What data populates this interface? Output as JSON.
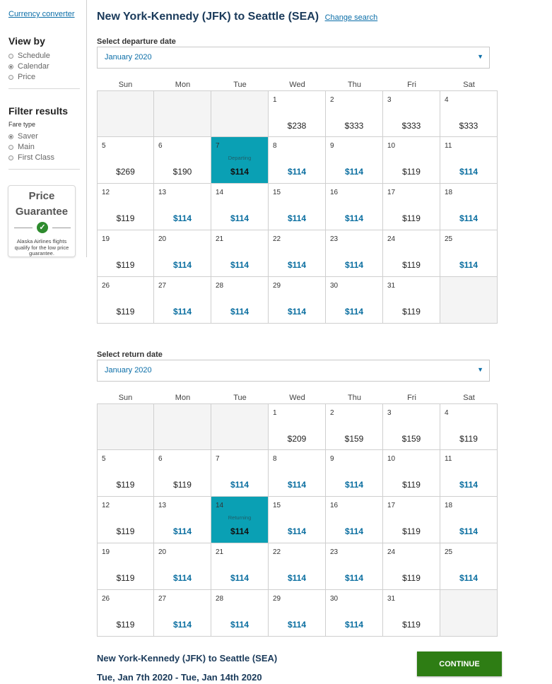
{
  "sidebar": {
    "currency_link": "Currency converter",
    "view_by": {
      "heading": "View by",
      "options": [
        {
          "label": "Schedule",
          "selected": false
        },
        {
          "label": "Calendar",
          "selected": true
        },
        {
          "label": "Price",
          "selected": false
        }
      ]
    },
    "filter": {
      "heading": "Filter results",
      "subheading": "Fare type",
      "options": [
        {
          "label": "Saver",
          "selected": true
        },
        {
          "label": "Main",
          "selected": false
        },
        {
          "label": "First Class",
          "selected": false
        }
      ]
    },
    "guarantee": {
      "title_line1": "Price",
      "title_line2": "Guarantee",
      "icon": "check-circle-icon",
      "text": "Alaska Airlines flights qualify for the low price guarantee."
    }
  },
  "header": {
    "title": "New York-Kennedy (JFK) to Seattle (SEA)",
    "change_link": "Change search"
  },
  "weekdays": [
    "Sun",
    "Mon",
    "Tue",
    "Wed",
    "Thu",
    "Fri",
    "Sat"
  ],
  "departure": {
    "label": "Select departure date",
    "month": "January 2020",
    "selected_tag": "Departing",
    "days": [
      {
        "day": "1",
        "price": "$238",
        "low": false
      },
      {
        "day": "2",
        "price": "$333",
        "low": false
      },
      {
        "day": "3",
        "price": "$333",
        "low": false
      },
      {
        "day": "4",
        "price": "$333",
        "low": false
      },
      {
        "day": "5",
        "price": "$269",
        "low": false
      },
      {
        "day": "6",
        "price": "$190",
        "low": false
      },
      {
        "day": "7",
        "price": "$114",
        "low": false,
        "selected": true
      },
      {
        "day": "8",
        "price": "$114",
        "low": true
      },
      {
        "day": "9",
        "price": "$114",
        "low": true
      },
      {
        "day": "10",
        "price": "$119",
        "low": false
      },
      {
        "day": "11",
        "price": "$114",
        "low": true
      },
      {
        "day": "12",
        "price": "$119",
        "low": false
      },
      {
        "day": "13",
        "price": "$114",
        "low": true
      },
      {
        "day": "14",
        "price": "$114",
        "low": true
      },
      {
        "day": "15",
        "price": "$114",
        "low": true
      },
      {
        "day": "16",
        "price": "$114",
        "low": true
      },
      {
        "day": "17",
        "price": "$119",
        "low": false
      },
      {
        "day": "18",
        "price": "$114",
        "low": true
      },
      {
        "day": "19",
        "price": "$119",
        "low": false
      },
      {
        "day": "20",
        "price": "$114",
        "low": true
      },
      {
        "day": "21",
        "price": "$114",
        "low": true
      },
      {
        "day": "22",
        "price": "$114",
        "low": true
      },
      {
        "day": "23",
        "price": "$114",
        "low": true
      },
      {
        "day": "24",
        "price": "$119",
        "low": false
      },
      {
        "day": "25",
        "price": "$114",
        "low": true
      },
      {
        "day": "26",
        "price": "$119",
        "low": false
      },
      {
        "day": "27",
        "price": "$114",
        "low": true
      },
      {
        "day": "28",
        "price": "$114",
        "low": true
      },
      {
        "day": "29",
        "price": "$114",
        "low": true
      },
      {
        "day": "30",
        "price": "$114",
        "low": true
      },
      {
        "day": "31",
        "price": "$119",
        "low": false
      }
    ]
  },
  "return": {
    "label": "Select return date",
    "month": "January 2020",
    "selected_tag": "Returning",
    "days": [
      {
        "day": "1",
        "price": "$209",
        "low": false
      },
      {
        "day": "2",
        "price": "$159",
        "low": false
      },
      {
        "day": "3",
        "price": "$159",
        "low": false
      },
      {
        "day": "4",
        "price": "$119",
        "low": false
      },
      {
        "day": "5",
        "price": "$119",
        "low": false
      },
      {
        "day": "6",
        "price": "$119",
        "low": false
      },
      {
        "day": "7",
        "price": "$114",
        "low": true
      },
      {
        "day": "8",
        "price": "$114",
        "low": true
      },
      {
        "day": "9",
        "price": "$114",
        "low": true
      },
      {
        "day": "10",
        "price": "$119",
        "low": false
      },
      {
        "day": "11",
        "price": "$114",
        "low": true
      },
      {
        "day": "12",
        "price": "$119",
        "low": false
      },
      {
        "day": "13",
        "price": "$114",
        "low": true
      },
      {
        "day": "14",
        "price": "$114",
        "low": false,
        "selected": true
      },
      {
        "day": "15",
        "price": "$114",
        "low": true
      },
      {
        "day": "16",
        "price": "$114",
        "low": true
      },
      {
        "day": "17",
        "price": "$119",
        "low": false
      },
      {
        "day": "18",
        "price": "$114",
        "low": true
      },
      {
        "day": "19",
        "price": "$119",
        "low": false
      },
      {
        "day": "20",
        "price": "$114",
        "low": true
      },
      {
        "day": "21",
        "price": "$114",
        "low": true
      },
      {
        "day": "22",
        "price": "$114",
        "low": true
      },
      {
        "day": "23",
        "price": "$114",
        "low": true
      },
      {
        "day": "24",
        "price": "$119",
        "low": false
      },
      {
        "day": "25",
        "price": "$114",
        "low": true
      },
      {
        "day": "26",
        "price": "$119",
        "low": false
      },
      {
        "day": "27",
        "price": "$114",
        "low": true
      },
      {
        "day": "28",
        "price": "$114",
        "low": true
      },
      {
        "day": "29",
        "price": "$114",
        "low": true
      },
      {
        "day": "30",
        "price": "$114",
        "low": true
      },
      {
        "day": "31",
        "price": "$119",
        "low": false
      }
    ]
  },
  "summary": {
    "route": "New York-Kennedy (JFK) to Seattle (SEA)",
    "dates": "Tue, Jan 7th 2020 - Tue, Jan 14th 2020",
    "continue_label": "CONTINUE"
  },
  "colors": {
    "selected_cell": "#0aa0b4",
    "low_fare_text": "#0a6ea0",
    "continue_button": "#2e7d14",
    "link": "#0b6ea8"
  }
}
